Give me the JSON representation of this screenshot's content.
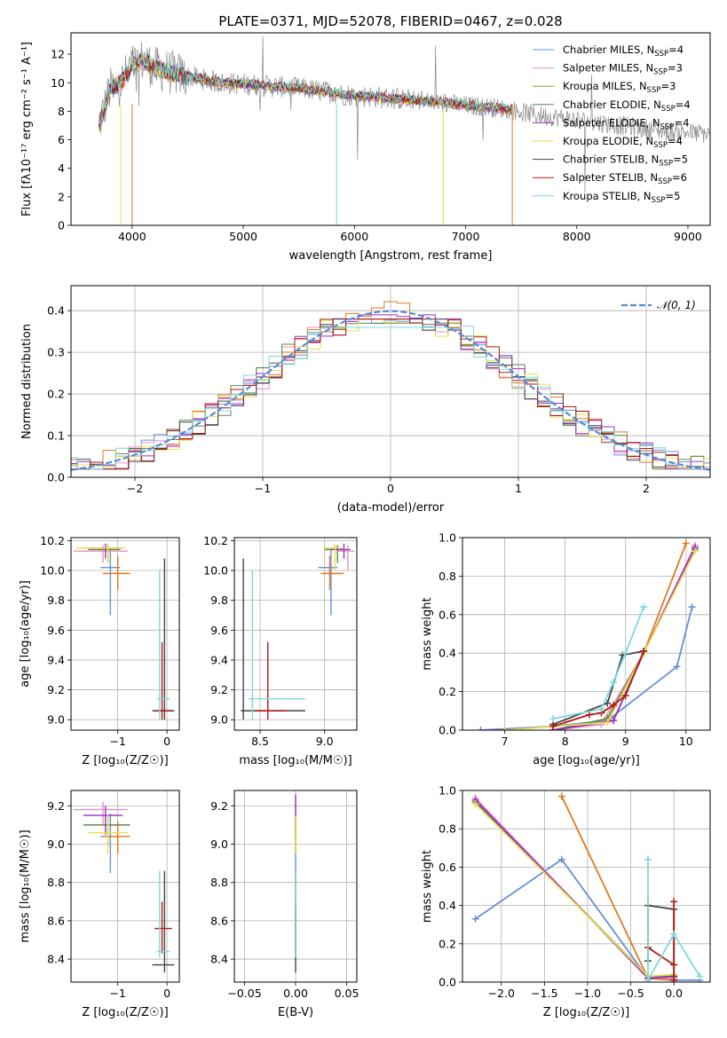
{
  "figure_title": "PLATE=0371, MJD=52078, FIBERID=0467, z=0.028",
  "colors": {
    "chabrier_miles": "#6a8fd8",
    "salpeter_miles": "#e88fc4",
    "kroupa_miles": "#b8860b",
    "chabrier_elodie": "#5c8a4a",
    "salpeter_elodie": "#9b30c8",
    "kroupa_elodie": "#e8e04a",
    "chabrier_stelib": "#444444",
    "salpeter_stelib": "#b01818",
    "kroupa_stelib": "#7fd8d8",
    "orange": "#e07a20",
    "grey": "#8a8a8a",
    "normal": "#5b8ad8"
  },
  "chart_data": [
    {
      "id": "spectrum",
      "type": "line",
      "title": "PLATE=0371, MJD=52078, FIBERID=0467, z=0.028",
      "xlabel": "wavelength [Angstrom, rest frame]",
      "ylabel": "Flux [fλ10⁻¹⁷ erg cm⁻² s⁻¹ A⁻¹]",
      "xlim": [
        3450,
        9200
      ],
      "ylim": [
        0,
        13.5
      ],
      "xticks": [
        4000,
        5000,
        6000,
        7000,
        8000,
        9000
      ],
      "yticks": [
        0,
        2,
        4,
        6,
        8,
        10,
        12
      ],
      "grid": false,
      "legend_position": "top-right",
      "legend": [
        {
          "label": "Chabrier MILES, N",
          "sub": "SSP",
          "suffix": "=4",
          "color": "#6a8fd8"
        },
        {
          "label": "Salpeter MILES, N",
          "sub": "SSP",
          "suffix": "=3",
          "color": "#e88fc4"
        },
        {
          "label": "Kroupa MILES, N",
          "sub": "SSP",
          "suffix": "=3",
          "color": "#b8860b"
        },
        {
          "label": "Chabrier ELODIE, N",
          "sub": "SSP",
          "suffix": "=4",
          "color": "#5c8a4a"
        },
        {
          "label": "Salpeter ELODIE, N",
          "sub": "SSP",
          "suffix": "=4",
          "color": "#9b30c8"
        },
        {
          "label": "Kroupa ELODIE, N",
          "sub": "SSP",
          "suffix": "=4",
          "color": "#e8e04a"
        },
        {
          "label": "Chabrier STELIB, N",
          "sub": "SSP",
          "suffix": "=5",
          "color": "#444444"
        },
        {
          "label": "Salpeter STELIB, N",
          "sub": "SSP",
          "suffix": "=6",
          "color": "#b01818"
        },
        {
          "label": "Kroupa STELIB, N",
          "sub": "SSP",
          "suffix": "=5",
          "color": "#7fd8d8"
        }
      ],
      "continuum": {
        "x": [
          3700,
          3800,
          3900,
          4000,
          4100,
          4200,
          4400,
          4600,
          4800,
          5000,
          5200,
          5500,
          5800,
          6000,
          6200,
          6500,
          6800,
          7000,
          7200,
          7400,
          7600,
          7800,
          8000,
          8200,
          8400,
          8600,
          8800,
          9000,
          9200
        ],
        "y": [
          7.0,
          9.5,
          10.0,
          11.2,
          11.6,
          11.0,
          10.6,
          10.3,
          10.0,
          9.9,
          9.8,
          9.6,
          9.3,
          9.1,
          9.0,
          8.8,
          8.6,
          8.4,
          8.3,
          8.1,
          7.8,
          7.6,
          7.4,
          7.2,
          7.0,
          6.8,
          6.6,
          6.5,
          6.4
        ]
      },
      "model_wavelength_range": [
        3700,
        7420
      ],
      "observed_wavelength_range": [
        3700,
        9200
      ]
    },
    {
      "id": "residuals",
      "type": "histogram",
      "xlabel": "(data-model)/error",
      "ylabel": "Normed distribution",
      "xlim": [
        -2.5,
        2.5
      ],
      "ylim": [
        0,
        0.46
      ],
      "xticks": [
        -2,
        -1,
        0,
        1,
        2
      ],
      "yticks": [
        0.0,
        0.1,
        0.2,
        0.3,
        0.4
      ],
      "grid": true,
      "bin_width": 0.1,
      "legend": [
        {
          "label": "𝒩(0, 1)",
          "color": "#5b8ad8",
          "style": "dashed"
        }
      ],
      "reference_curve": "normal pdf, mean 0, std 1",
      "series_colors": [
        "#6a8fd8",
        "#e88fc4",
        "#e07a20",
        "#5c8a4a",
        "#9b30c8",
        "#e8e04a",
        "#444444",
        "#b01818",
        "#7fd8d8"
      ],
      "series_peak_values": [
        0.38,
        0.36,
        0.44,
        0.37,
        0.39,
        0.38,
        0.38,
        0.38,
        0.36
      ]
    },
    {
      "id": "age_vs_Z",
      "type": "errorbar",
      "xlabel": "Z [log₁₀(Z/Z☉)]",
      "ylabel": "age  [log₁₀(age/yr)]",
      "xlim": [
        -1.95,
        0.25
      ],
      "ylim": [
        8.93,
        10.22
      ],
      "xticks": [
        -1,
        0
      ],
      "yticks": [
        9.0,
        9.2,
        9.4,
        9.6,
        9.8,
        10.0,
        10.2
      ],
      "grid": true,
      "points": [
        {
          "x": -1.15,
          "xlo": -1.35,
          "xhi": -0.95,
          "y": 10.02,
          "ylo": 9.7,
          "yhi": 10.15,
          "color": "#6a8fd8"
        },
        {
          "x": -1.3,
          "xlo": -1.9,
          "xhi": -0.8,
          "y": 10.13,
          "ylo": 10.05,
          "yhi": 10.17,
          "color": "#e88fc4"
        },
        {
          "x": -1.0,
          "xlo": -1.3,
          "xhi": -0.75,
          "y": 9.98,
          "ylo": 9.87,
          "yhi": 10.1,
          "color": "#e07a20"
        },
        {
          "x": -1.2,
          "xlo": -1.6,
          "xhi": -0.95,
          "y": 10.14,
          "ylo": 10.05,
          "yhi": 10.17,
          "color": "#5c8a4a"
        },
        {
          "x": -1.25,
          "xlo": -1.7,
          "xhi": -0.9,
          "y": 10.15,
          "ylo": 10.08,
          "yhi": 10.18,
          "color": "#9b30c8"
        },
        {
          "x": -1.2,
          "xlo": -1.85,
          "xhi": -0.85,
          "y": 10.15,
          "ylo": 10.05,
          "yhi": 10.18,
          "color": "#e8e04a"
        },
        {
          "x": -0.05,
          "xlo": -0.3,
          "xhi": 0.15,
          "y": 9.06,
          "ylo": 9.0,
          "yhi": 10.08,
          "color": "#444444"
        },
        {
          "x": -0.1,
          "xlo": -0.25,
          "xhi": 0.1,
          "y": 9.06,
          "ylo": 9.0,
          "yhi": 9.52,
          "color": "#b01818"
        },
        {
          "x": -0.15,
          "xlo": -0.2,
          "xhi": 0.05,
          "y": 9.14,
          "ylo": 9.0,
          "yhi": 10.0,
          "color": "#7fd8d8"
        }
      ]
    },
    {
      "id": "age_vs_mass",
      "type": "errorbar",
      "xlabel": "mass [log₁₀(M/M☉)]",
      "ylabel": "",
      "xlim": [
        8.3,
        9.25
      ],
      "ylim": [
        8.93,
        10.22
      ],
      "xticks": [
        8.5,
        9.0
      ],
      "yticks": [
        9.0,
        9.2,
        9.4,
        9.6,
        9.8,
        10.0,
        10.2
      ],
      "grid": true,
      "points": [
        {
          "x": 9.05,
          "xlo": 8.95,
          "xhi": 9.1,
          "y": 10.02,
          "ylo": 9.7,
          "yhi": 10.15,
          "color": "#6a8fd8"
        },
        {
          "x": 9.18,
          "xlo": 9.1,
          "xhi": 9.23,
          "y": 10.13,
          "ylo": 10.0,
          "yhi": 10.17,
          "color": "#e88fc4"
        },
        {
          "x": 9.04,
          "xlo": 8.97,
          "xhi": 9.15,
          "y": 9.98,
          "ylo": 9.87,
          "yhi": 10.1,
          "color": "#e07a20"
        },
        {
          "x": 9.1,
          "xlo": 9.0,
          "xhi": 9.15,
          "y": 10.14,
          "ylo": 10.05,
          "yhi": 10.17,
          "color": "#5c8a4a"
        },
        {
          "x": 9.15,
          "xlo": 9.05,
          "xhi": 9.2,
          "y": 10.14,
          "ylo": 10.08,
          "yhi": 10.18,
          "color": "#9b30c8"
        },
        {
          "x": 9.08,
          "xlo": 9.0,
          "xhi": 9.15,
          "y": 10.15,
          "ylo": 10.0,
          "yhi": 10.18,
          "color": "#e8e04a"
        },
        {
          "x": 8.37,
          "xlo": 8.35,
          "xhi": 8.85,
          "y": 9.06,
          "ylo": 9.0,
          "yhi": 10.08,
          "color": "#444444"
        },
        {
          "x": 8.56,
          "xlo": 8.43,
          "xhi": 8.7,
          "y": 9.06,
          "ylo": 9.0,
          "yhi": 9.52,
          "color": "#b01818"
        },
        {
          "x": 8.44,
          "xlo": 8.41,
          "xhi": 8.85,
          "y": 9.14,
          "ylo": 9.0,
          "yhi": 10.0,
          "color": "#7fd8d8"
        }
      ]
    },
    {
      "id": "cumulative_mass_weight_vs_age",
      "type": "line",
      "xlabel": "age  [log₁₀(age/yr)]",
      "ylabel": "mass weight",
      "xlim": [
        6.3,
        10.4
      ],
      "ylim": [
        0,
        1.0
      ],
      "xticks": [
        7,
        8,
        9,
        10
      ],
      "yticks": [
        0.0,
        0.2,
        0.4,
        0.6,
        0.8,
        1.0
      ],
      "grid": true,
      "series": [
        {
          "color": "#6a8fd8",
          "x": [
            6.6,
            7.8,
            8.7,
            9.85,
            10.1
          ],
          "y": [
            0.0,
            0.02,
            0.05,
            0.33,
            0.64
          ]
        },
        {
          "color": "#e88fc4",
          "x": [
            7.8,
            8.6,
            9.3,
            10.15
          ],
          "y": [
            0.0,
            0.03,
            0.4,
            0.96
          ]
        },
        {
          "color": "#e07a20",
          "x": [
            7.8,
            8.8,
            9.3,
            10.0
          ],
          "y": [
            0.0,
            0.05,
            0.4,
            0.97
          ]
        },
        {
          "color": "#5c8a4a",
          "x": [
            7.8,
            8.7,
            9.3,
            10.15
          ],
          "y": [
            0.0,
            0.06,
            0.4,
            0.94
          ]
        },
        {
          "color": "#9b30c8",
          "x": [
            7.8,
            8.8,
            9.3,
            10.15
          ],
          "y": [
            0.0,
            0.05,
            0.4,
            0.95
          ]
        },
        {
          "color": "#e8e04a",
          "x": [
            7.0,
            8.7,
            9.3,
            10.15
          ],
          "y": [
            0.0,
            0.04,
            0.4,
            0.93
          ]
        },
        {
          "color": "#444444",
          "x": [
            7.8,
            8.7,
            8.95,
            9.3
          ],
          "y": [
            0.03,
            0.14,
            0.39,
            0.41
          ]
        },
        {
          "color": "#b01818",
          "x": [
            7.8,
            8.4,
            8.6,
            8.8,
            9.0,
            9.3
          ],
          "y": [
            0.02,
            0.08,
            0.09,
            0.13,
            0.18,
            0.41
          ]
        },
        {
          "color": "#7fd8d8",
          "x": [
            7.8,
            8.6,
            8.8,
            9.0,
            9.3
          ],
          "y": [
            0.06,
            0.11,
            0.25,
            0.4,
            0.64
          ]
        }
      ]
    },
    {
      "id": "mass_vs_Z",
      "type": "errorbar",
      "xlabel": "Z [log₁₀(Z/Z☉)]",
      "ylabel": "mass [log₁₀(M/M☉)]",
      "xlim": [
        -1.95,
        0.25
      ],
      "ylim": [
        8.28,
        9.28
      ],
      "xticks": [
        -1,
        0
      ],
      "yticks": [
        8.4,
        8.6,
        8.8,
        9.0,
        9.2
      ],
      "grid": true,
      "points": [
        {
          "x": -1.15,
          "xlo": -1.35,
          "xhi": -0.95,
          "y": 9.04,
          "ylo": 8.85,
          "yhi": 9.16,
          "color": "#6a8fd8"
        },
        {
          "x": -1.3,
          "xlo": -1.9,
          "xhi": -0.8,
          "y": 9.18,
          "ylo": 9.1,
          "yhi": 9.22,
          "color": "#e88fc4"
        },
        {
          "x": -1.0,
          "xlo": -1.3,
          "xhi": -0.75,
          "y": 9.04,
          "ylo": 8.95,
          "yhi": 9.12,
          "color": "#e07a20"
        },
        {
          "x": -1.2,
          "xlo": -1.7,
          "xhi": -0.75,
          "y": 9.1,
          "ylo": 9.0,
          "yhi": 9.15,
          "color": "#5c8a4a"
        },
        {
          "x": -1.25,
          "xlo": -1.7,
          "xhi": -0.9,
          "y": 9.15,
          "ylo": 9.05,
          "yhi": 9.2,
          "color": "#9b30c8"
        },
        {
          "x": -1.2,
          "xlo": -1.6,
          "xhi": -0.8,
          "y": 9.06,
          "ylo": 8.95,
          "yhi": 9.15,
          "color": "#e8e04a"
        },
        {
          "x": -0.05,
          "xlo": -0.3,
          "xhi": 0.15,
          "y": 8.37,
          "ylo": 8.33,
          "yhi": 8.86,
          "color": "#444444"
        },
        {
          "x": -0.1,
          "xlo": -0.25,
          "xhi": 0.1,
          "y": 8.56,
          "ylo": 8.43,
          "yhi": 8.7,
          "color": "#b01818"
        },
        {
          "x": -0.15,
          "xlo": -0.2,
          "xhi": 0.05,
          "y": 8.44,
          "ylo": 8.41,
          "yhi": 8.86,
          "color": "#7fd8d8"
        }
      ]
    },
    {
      "id": "mass_vs_EBV",
      "type": "errorbar",
      "xlabel": "E(B-V)",
      "ylabel": "",
      "xlim": [
        -0.06,
        0.06
      ],
      "ylim": [
        8.28,
        9.28
      ],
      "xticks": [
        -0.05,
        0.0,
        0.05
      ],
      "yticks": [
        8.4,
        8.6,
        8.8,
        9.0,
        9.2
      ],
      "grid": true,
      "points": [
        {
          "x": 0.0,
          "y": 9.05,
          "ylo": 8.85,
          "yhi": 9.16,
          "color": "#6a8fd8"
        },
        {
          "x": 0.0,
          "y": 9.18,
          "ylo": 9.1,
          "yhi": 9.22,
          "color": "#e88fc4"
        },
        {
          "x": 0.0,
          "y": 9.04,
          "ylo": 8.95,
          "yhi": 9.12,
          "color": "#e07a20"
        },
        {
          "x": 0.0,
          "y": 9.1,
          "ylo": 9.0,
          "yhi": 9.15,
          "color": "#5c8a4a"
        },
        {
          "x": 0.0,
          "y": 9.18,
          "ylo": 9.05,
          "yhi": 9.26,
          "color": "#9b30c8"
        },
        {
          "x": 0.0,
          "y": 9.06,
          "ylo": 8.95,
          "yhi": 9.15,
          "color": "#e8e04a"
        },
        {
          "x": 0.0,
          "y": 8.37,
          "ylo": 8.33,
          "yhi": 8.86,
          "color": "#444444"
        },
        {
          "x": 0.0,
          "y": 8.56,
          "ylo": 8.43,
          "yhi": 8.7,
          "color": "#b01818"
        },
        {
          "x": 0.0,
          "y": 8.44,
          "ylo": 8.41,
          "yhi": 8.86,
          "color": "#7fd8d8"
        }
      ]
    },
    {
      "id": "mass_weight_vs_Z",
      "type": "line",
      "xlabel": "Z [log₁₀(Z/Z☉)]",
      "ylabel": "mass weight",
      "xlim": [
        -2.45,
        0.42
      ],
      "ylim": [
        0,
        1.0
      ],
      "xticks": [
        -2.0,
        -1.5,
        -1.0,
        -0.5,
        0.0
      ],
      "yticks": [
        0.0,
        0.2,
        0.4,
        0.6,
        0.8,
        1.0
      ],
      "grid": true,
      "series": [
        {
          "color": "#6a8fd8",
          "x": [
            -2.3,
            -1.3,
            -0.3,
            0.0,
            0.3
          ],
          "y": [
            0.33,
            0.64,
            0.02,
            0.01,
            0.01
          ]
        },
        {
          "color": "#e88fc4",
          "x": [
            -2.3,
            -0.3,
            0.0
          ],
          "y": [
            0.96,
            0.02,
            0.02
          ]
        },
        {
          "color": "#e07a20",
          "x": [
            -1.3,
            -0.3,
            0.0
          ],
          "y": [
            0.97,
            0.02,
            0.01
          ]
        },
        {
          "color": "#5c8a4a",
          "x": [
            -2.3,
            -0.3,
            0.0
          ],
          "y": [
            0.94,
            0.03,
            0.03
          ]
        },
        {
          "color": "#9b30c8",
          "x": [
            -2.3,
            -0.3,
            0.0
          ],
          "y": [
            0.95,
            0.02,
            0.03
          ]
        },
        {
          "color": "#e8e04a",
          "x": [
            -2.3,
            -0.3,
            0.0
          ],
          "y": [
            0.93,
            0.03,
            0.04
          ]
        },
        {
          "color": "#444444",
          "x": [
            -0.3,
            -0.3,
            0.0,
            0.0
          ],
          "y": [
            0.11,
            0.4,
            0.38,
            0.03
          ]
        },
        {
          "color": "#b01818",
          "x": [
            -0.3,
            0.0,
            0.0,
            0.0
          ],
          "y": [
            0.18,
            0.09,
            0.42,
            0.01
          ]
        },
        {
          "color": "#7fd8d8",
          "x": [
            -0.3,
            -0.3,
            0.0,
            0.3
          ],
          "y": [
            0.64,
            0.01,
            0.25,
            0.03
          ]
        }
      ]
    }
  ]
}
